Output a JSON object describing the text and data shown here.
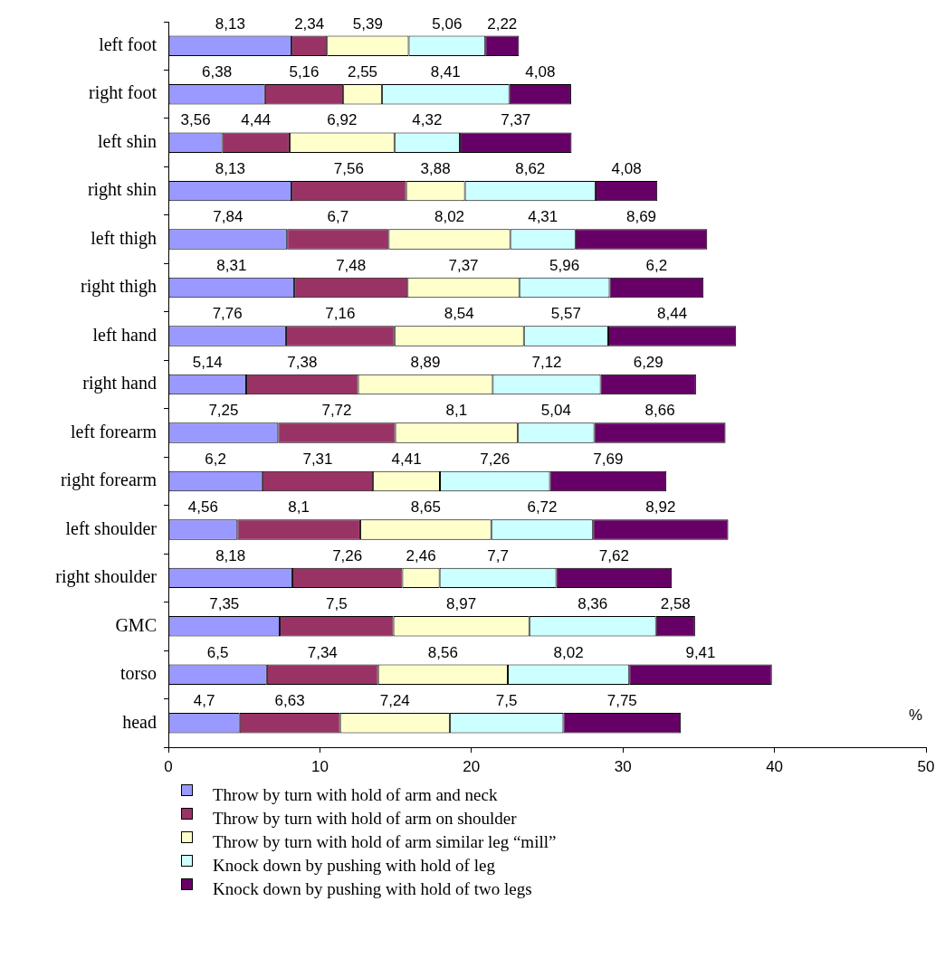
{
  "chart_data": {
    "type": "bar",
    "orientation": "horizontal",
    "stacked": true,
    "xlabel": "%",
    "categories": [
      "left foot",
      "right foot",
      "left shin",
      "right shin",
      "left thigh",
      "right thigh",
      "left hand",
      "right hand",
      "left forearm",
      "right forearm",
      "left shoulder",
      "right shoulder",
      "GMC",
      "torso",
      "head"
    ],
    "xlim": [
      0,
      50
    ],
    "xticks": [
      0,
      10,
      20,
      30,
      40,
      50
    ],
    "legend": "bottom",
    "series": [
      {
        "name": "Throw by turn with hold of arm and neck",
        "color": "#9999ff",
        "values": [
          8.13,
          6.38,
          3.56,
          8.13,
          7.84,
          8.31,
          7.76,
          5.14,
          7.25,
          6.2,
          4.56,
          8.18,
          7.35,
          6.5,
          4.7
        ],
        "value_labels": [
          "8,13",
          "6,38",
          "3,56",
          "8,13",
          "7,84",
          "8,31",
          "7,76",
          "5,14",
          "7,25",
          "6,2",
          "4,56",
          "8,18",
          "7,35",
          "6,5",
          "4,7"
        ]
      },
      {
        "name": "Throw by turn with hold of arm on shoulder",
        "color": "#993366",
        "values": [
          2.34,
          5.16,
          4.44,
          7.56,
          6.7,
          7.48,
          7.16,
          7.38,
          7.72,
          7.31,
          8.1,
          7.26,
          7.5,
          7.34,
          6.63
        ],
        "value_labels": [
          "2,34",
          "5,16",
          "4,44",
          "7,56",
          "6,7",
          "7,48",
          "7,16",
          "7,38",
          "7,72",
          "7,31",
          "8,1",
          "7,26",
          "7,5",
          "7,34",
          "6,63"
        ]
      },
      {
        "name": "Throw by turn with hold of arm similar leg “mill”",
        "color": "#ffffcc",
        "values": [
          5.39,
          2.55,
          6.92,
          3.88,
          8.02,
          7.37,
          8.54,
          8.89,
          8.1,
          4.41,
          8.65,
          2.46,
          8.97,
          8.56,
          7.24
        ],
        "value_labels": [
          "5,39",
          "2,55",
          "6,92",
          "3,88",
          "8,02",
          "7,37",
          "8,54",
          "8,89",
          "8,1",
          "4,41",
          "8,65",
          "2,46",
          "8,97",
          "8,56",
          "7,24"
        ]
      },
      {
        "name": "Knock down by pushing with hold of leg",
        "color": "#ccffff",
        "values": [
          5.06,
          8.41,
          4.32,
          8.62,
          4.31,
          5.96,
          5.57,
          7.12,
          5.04,
          7.26,
          6.72,
          7.7,
          8.36,
          8.02,
          7.5
        ],
        "value_labels": [
          "5,06",
          "8,41",
          "4,32",
          "8,62",
          "4,31",
          "5,96",
          "5,57",
          "7,12",
          "5,04",
          "7,26",
          "6,72",
          "7,7",
          "8,36",
          "8,02",
          "7,5"
        ]
      },
      {
        "name": "Knock down by pushing with hold of two legs",
        "color": "#660066",
        "values": [
          2.22,
          4.08,
          7.37,
          4.08,
          8.69,
          6.2,
          8.44,
          6.29,
          8.66,
          7.69,
          8.92,
          7.62,
          2.58,
          9.41,
          7.75
        ],
        "value_labels": [
          "2,22",
          "4,08",
          "7,37",
          "4,08",
          "8,69",
          "6,2",
          "8,44",
          "6,29",
          "8,66",
          "7,69",
          "8,92",
          "7,62",
          "2,58",
          "9,41",
          "7,75"
        ]
      }
    ]
  }
}
